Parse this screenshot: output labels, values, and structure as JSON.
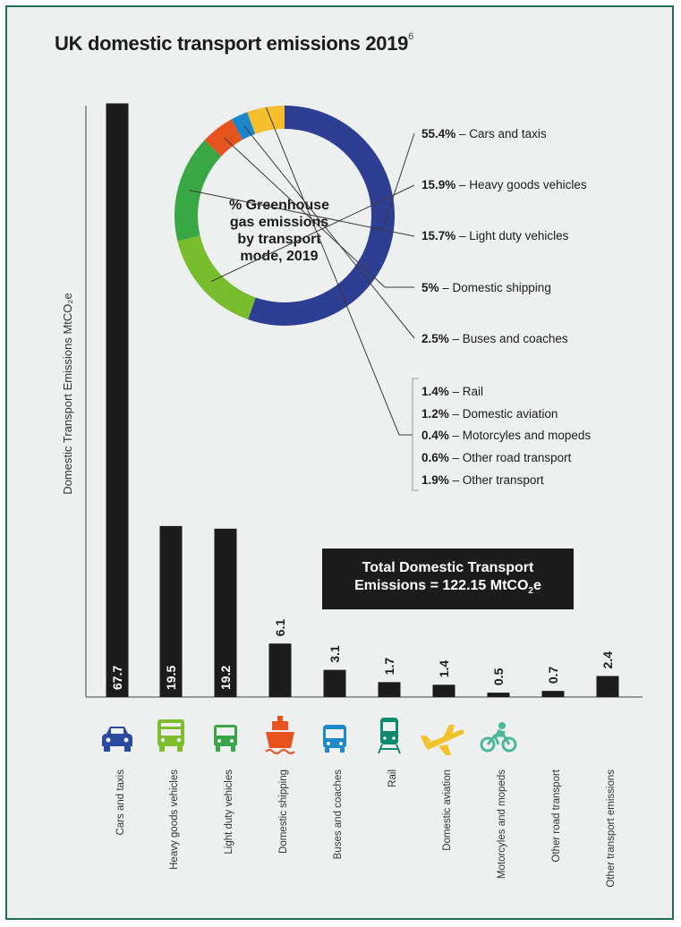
{
  "title": "UK domestic transport emissions 2019",
  "title_footnote": "6",
  "total": {
    "line1": "Total Domestic Transport",
    "line2_prefix": "Emissions  = 122.15 MtCO",
    "line2_sub": "2",
    "line2_suffix": "e"
  },
  "chart_data": [
    {
      "type": "bar",
      "ylabel": "Domestic Transport Emissions MtCO₂e",
      "categories": [
        "Cars and taxis",
        "Heavy goods vehicles",
        "Light duty vehicles",
        "Domestic shipping",
        "Buses and coaches",
        "Rail",
        "Domestic aviation",
        "Motorcyles and mopeds",
        "Other road transport",
        "Other transport emissions"
      ],
      "values": [
        67.7,
        19.5,
        19.2,
        6.1,
        3.1,
        1.7,
        1.4,
        0.5,
        0.7,
        2.4
      ],
      "value_labels": [
        "67.7",
        "19.5",
        "19.2",
        "6.1",
        "3.1",
        "1.7",
        "1.4",
        "0.5",
        "0.7",
        "2.4"
      ],
      "icons": [
        "car-icon",
        "truck-icon",
        "van-icon",
        "ship-icon",
        "bus-icon",
        "train-icon",
        "plane-icon",
        "motorcycle-icon",
        "none",
        "none"
      ],
      "icon_colors": [
        "#2b4a9e",
        "#7dbd2e",
        "#3aa64a",
        "#e8521f",
        "#1e88c8",
        "#0f8a6c",
        "#f2c22a",
        "#4cb89a",
        "",
        ""
      ],
      "bar_color": "#1c1c1c"
    },
    {
      "type": "pie",
      "title": "% Greenhouse gas emissions by transport mode, 2019",
      "center_lines": [
        "% Greenhouse",
        "gas emissions",
        "by transport",
        "mode, 2019"
      ],
      "slices": [
        {
          "label": "Cars and taxis",
          "value": 55.4,
          "display": "55.4%",
          "color": "#2e3f93"
        },
        {
          "label": "Heavy goods vehicles",
          "value": 15.9,
          "display": "15.9%",
          "color": "#79bd2d"
        },
        {
          "label": "Light duty vehicles",
          "value": 15.7,
          "display": "15.7%",
          "color": "#3aa745"
        },
        {
          "label": "Domestic shipping",
          "value": 5,
          "display": "5%",
          "color": "#e4531c"
        },
        {
          "label": "Buses and coaches",
          "value": 2.5,
          "display": "2.5%",
          "color": "#1b86c9"
        },
        {
          "label": "Rail",
          "value": 1.4,
          "display": "1.4%",
          "color": "#f6bd2c"
        },
        {
          "label": "Domestic aviation",
          "value": 1.2,
          "display": "1.2%",
          "color": "#f6bd2c"
        },
        {
          "label": "Motorcyles and mopeds",
          "value": 0.4,
          "display": "0.4%",
          "color": "#f6bd2c"
        },
        {
          "label": "Other road transport",
          "value": 0.6,
          "display": "0.6%",
          "color": "#f6bd2c"
        },
        {
          "label": "Other transport",
          "value": 1.9,
          "display": "1.9%",
          "color": "#f6bd2c"
        }
      ]
    }
  ]
}
